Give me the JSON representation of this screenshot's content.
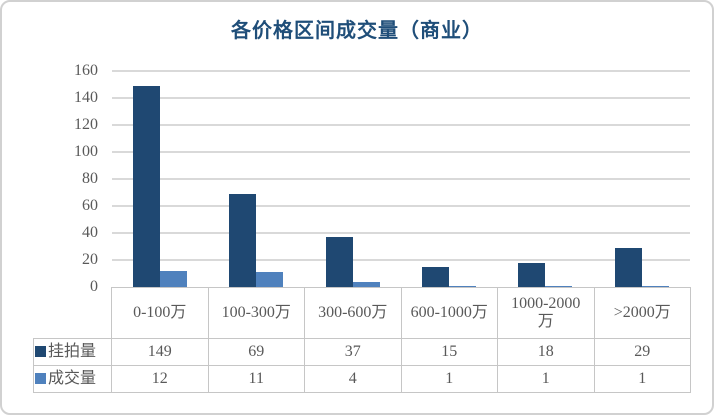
{
  "title": "各价格区间成交量（商业）",
  "chart_data": {
    "type": "bar",
    "title": "各价格区间成交量（商业）",
    "categories": [
      "0-100万",
      "100-300万",
      "300-600万",
      "600-1000万",
      "1000-2000万",
      ">2000万"
    ],
    "series": [
      {
        "name": "挂拍量",
        "values": [
          149,
          69,
          37,
          15,
          18,
          29
        ],
        "color": "#1f4872"
      },
      {
        "name": "成交量",
        "values": [
          12,
          11,
          4,
          1,
          1,
          1
        ],
        "color": "#4f81bd"
      }
    ],
    "ylim": [
      0,
      160
    ],
    "yticks": [
      0,
      20,
      40,
      60,
      80,
      100,
      120,
      140,
      160
    ],
    "grid": true,
    "legend_position": "data-table-left",
    "data_table": true
  },
  "colors": {
    "title_text": "#1f4e79",
    "axis_text": "#595959",
    "gridline": "#d9d9d9",
    "table_border": "#c6c6c6",
    "frame_border": "#d1d1d1",
    "background": "#ffffff"
  }
}
